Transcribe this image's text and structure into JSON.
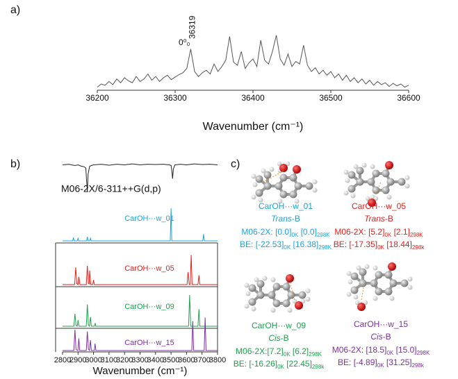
{
  "chart_data": [
    {
      "type": "line",
      "panel_label": "a)",
      "x_label": "Wavenumber (cm⁻¹)",
      "xlim": [
        36200,
        36600
      ],
      "xticks": [
        36200,
        36300,
        36400,
        36500,
        36600
      ],
      "ylim": [
        0,
        100
      ],
      "annotations": [
        {
          "text": "0⁰₀",
          "x": 36319
        }
      ],
      "x": [
        36200,
        36205,
        36210,
        36215,
        36220,
        36225,
        36230,
        36235,
        36240,
        36245,
        36250,
        36255,
        36260,
        36265,
        36270,
        36275,
        36280,
        36285,
        36290,
        36295,
        36300,
        36305,
        36310,
        36315,
        36320,
        36325,
        36330,
        36335,
        36340,
        36345,
        36350,
        36355,
        36360,
        36365,
        36370,
        36375,
        36380,
        36385,
        36390,
        36395,
        36400,
        36405,
        36410,
        36415,
        36420,
        36425,
        36430,
        36435,
        36440,
        36445,
        36450,
        36455,
        36460,
        36465,
        36470,
        36475,
        36480,
        36485,
        36490,
        36495,
        36500,
        36505,
        36510,
        36515,
        36520,
        36525,
        36530,
        36535,
        36540,
        36545,
        36550,
        36555,
        36560,
        36565,
        36570,
        36575,
        36580,
        36585,
        36590,
        36595,
        36600
      ],
      "series": [
        {
          "color": "#555555",
          "values": [
            5,
            10,
            8,
            14,
            9,
            18,
            12,
            20,
            15,
            12,
            22,
            14,
            18,
            26,
            16,
            22,
            14,
            20,
            24,
            17,
            21,
            25,
            28,
            35,
            66,
            30,
            22,
            28,
            32,
            26,
            42,
            30,
            38,
            48,
            86,
            45,
            40,
            62,
            35,
            44,
            50,
            38,
            80,
            48,
            42,
            62,
            88,
            50,
            40,
            58,
            38,
            46,
            42,
            72,
            40,
            30,
            36,
            26,
            32,
            24,
            30,
            20,
            26,
            16,
            24,
            14,
            20,
            12,
            18,
            10,
            16,
            8,
            14,
            9,
            12,
            6,
            11,
            7,
            10,
            5,
            8
          ]
        }
      ]
    },
    {
      "type": "line",
      "panel_label": "b)",
      "x_label": "Wavenumber (cm⁻¹)",
      "xlim": [
        2800,
        3800
      ],
      "xticks": [
        2800,
        2900,
        3000,
        3100,
        3200,
        3300,
        3400,
        3500,
        3600,
        3700,
        3800
      ],
      "ylim": [
        0,
        100
      ],
      "annotations": [
        {
          "text": "M06-2X/6-311++G(d,p)"
        }
      ],
      "series": [
        {
          "color": "#222222",
          "x": [
            2800,
            2840,
            2880,
            2900,
            2920,
            2940,
            2950,
            2955,
            2960,
            2965,
            2975,
            3000,
            3050,
            3100,
            3150,
            3200,
            3250,
            3300,
            3350,
            3400,
            3450,
            3490,
            3500,
            3505,
            3510,
            3515,
            3525,
            3560,
            3600,
            3650,
            3700,
            3750,
            3800
          ],
          "values": [
            88,
            90,
            86,
            88,
            84,
            82,
            78,
            40,
            5,
            60,
            84,
            88,
            90,
            87,
            90,
            88,
            91,
            88,
            90,
            89,
            90,
            88,
            86,
            70,
            45,
            75,
            88,
            90,
            88,
            91,
            89,
            90,
            88
          ]
        },
        {
          "name": "CarOH···w_01",
          "color": "#1ca3dc",
          "x": [
            2800,
            2865,
            2870,
            2875,
            2895,
            2900,
            2905,
            2955,
            2960,
            2965,
            2975,
            2980,
            2985,
            3495,
            3500,
            3505,
            3705,
            3710,
            3715,
            3800
          ],
          "values": [
            0,
            0,
            10,
            0,
            0,
            8,
            0,
            0,
            12,
            0,
            0,
            8,
            0,
            0,
            100,
            0,
            0,
            20,
            0,
            0
          ]
        },
        {
          "name": "CarOH···w_05",
          "color": "#e3201b",
          "x": [
            2800,
            2878,
            2885,
            2892,
            2900,
            2905,
            2912,
            2953,
            2960,
            2967,
            2972,
            2975,
            2982,
            2995,
            3000,
            3005,
            3603,
            3610,
            3617,
            3624,
            3630,
            3636,
            3674,
            3680,
            3686,
            3800
          ],
          "values": [
            0,
            0,
            55,
            3,
            0,
            25,
            0,
            0,
            60,
            4,
            2,
            45,
            0,
            0,
            15,
            0,
            0,
            40,
            0,
            0,
            95,
            0,
            0,
            30,
            0,
            0
          ]
        },
        {
          "name": "CarOH···w_09",
          "color": "#1aa24a",
          "x": [
            2800,
            2873,
            2880,
            2887,
            2895,
            2900,
            2906,
            2953,
            2960,
            2967,
            2974,
            2980,
            2986,
            3005,
            3010,
            3015,
            3613,
            3620,
            3627,
            3674,
            3680,
            3686,
            3800
          ],
          "values": [
            0,
            0,
            40,
            2,
            0,
            20,
            0,
            0,
            70,
            3,
            0,
            30,
            0,
            0,
            10,
            0,
            0,
            100,
            0,
            0,
            55,
            0,
            0
          ]
        },
        {
          "name": "CarOH···w_15",
          "color": "#7b2fa0",
          "x": [
            2800,
            2873,
            2880,
            2887,
            2899,
            2905,
            2911,
            2953,
            2960,
            2967,
            2974,
            2980,
            2986,
            3005,
            3010,
            3015,
            3634,
            3640,
            3646,
            3714,
            3720,
            3726,
            3800
          ],
          "values": [
            0,
            0,
            60,
            3,
            0,
            35,
            0,
            0,
            55,
            4,
            0,
            30,
            0,
            0,
            20,
            0,
            0,
            85,
            0,
            0,
            95,
            0,
            0
          ]
        }
      ]
    }
  ],
  "panel_c": {
    "label": "c)",
    "structures": [
      {
        "name": "CarOH···w_01",
        "color": "#1ca3dc",
        "conformer": [
          "Trans",
          "-B"
        ],
        "energy": [
          "M06-2X: [0.0]",
          "0K",
          " [0.0]",
          "298K"
        ],
        "binding": [
          "BE: [-22.53]",
          "0K",
          " [16.38]",
          "298K"
        ]
      },
      {
        "name": "CarOH···w_05",
        "color": "#e3201b",
        "conformer": [
          "Trans",
          "-B"
        ],
        "energy": [
          "M06-2X: [5.2]",
          "0K",
          " [2.1]",
          "298K"
        ],
        "binding": [
          "BE: [-17.35]",
          "0K",
          " [18.44]",
          "298k"
        ]
      },
      {
        "name": "CarOH···w_09",
        "color": "#1aa24a",
        "conformer": [
          "Cis",
          "-B"
        ],
        "energy": [
          "M06-2X:[7.2]",
          "0K",
          " [6.2]",
          "298K"
        ],
        "binding": [
          "BE: [-16.26]",
          "0K",
          " [22.45]",
          "298k"
        ]
      },
      {
        "name": "CarOH···w_15",
        "color": "#7b2fa0",
        "conformer": [
          "Cis",
          "-B"
        ],
        "energy": [
          "M06-2X: [18.5]",
          "0K",
          " [15.0]",
          "298K"
        ],
        "binding": [
          "BE: [-4.89]",
          "0K",
          " [31.25]",
          "298k"
        ]
      }
    ]
  }
}
